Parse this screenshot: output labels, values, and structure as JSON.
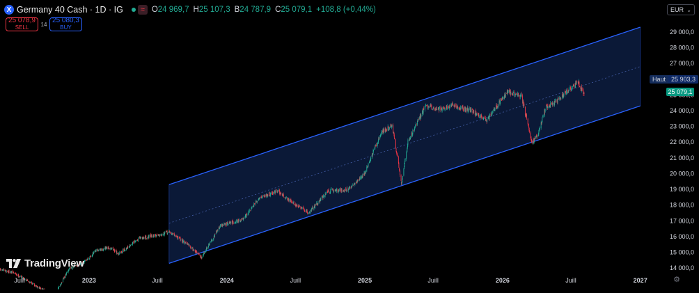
{
  "header": {
    "symbol_icon": "X",
    "symbol_icon_name": "exchange-icon",
    "title": "Germany 40 Cash · 1D · IG",
    "market_status_icon": "green-dot-icon",
    "wave_icon": "≈",
    "ohlc": {
      "open_label": "O",
      "open": "24 969,7",
      "high_label": "H",
      "high": "25 107,3",
      "low_label": "B",
      "low": "24 787,9",
      "close_label": "C",
      "close": "25 079,1",
      "change": "+108,8 (+0,44%)"
    }
  },
  "trade": {
    "sell_price": "25 078,9",
    "sell_label": "SELL",
    "spread": "14",
    "buy_price": "25 080,3",
    "buy_label": "BUY"
  },
  "currency": {
    "value": "EUR",
    "icon": "chevron-down-icon"
  },
  "price_tags": {
    "haut_label": "Haut",
    "haut_price": "25 903,3",
    "last_price": "25 079,1"
  },
  "logo": {
    "text": "TradingView",
    "icon": "tradingview-logo-icon"
  },
  "settings_icon": "gear-icon",
  "colors": {
    "background": "#000000",
    "up": "#22ab94",
    "down": "#f23645",
    "channel_line": "#2962ff",
    "channel_fill": "#0c1a3a",
    "last_price": "#089981"
  },
  "chart_data": {
    "type": "candlestick",
    "x_axis_labels": [
      {
        "label": "Juill",
        "date": "2022-07-01"
      },
      {
        "label": "2023",
        "date": "2023-01-01"
      },
      {
        "label": "Juill",
        "date": "2023-07-01"
      },
      {
        "label": "2024",
        "date": "2024-01-01"
      },
      {
        "label": "Juill",
        "date": "2024-07-01"
      },
      {
        "label": "2025",
        "date": "2025-01-01"
      },
      {
        "label": "Juill",
        "date": "2025-07-01"
      },
      {
        "label": "2026",
        "date": "2026-01-01"
      },
      {
        "label": "Juill",
        "date": "2026-07-01"
      },
      {
        "label": "2027",
        "date": "2027-01-01"
      }
    ],
    "y_ticks": [
      {
        "v": 14000,
        "label": "14 000,0"
      },
      {
        "v": 15000,
        "label": "15 000,0"
      },
      {
        "v": 16000,
        "label": "16 000,0"
      },
      {
        "v": 17000,
        "label": "17 000,0"
      },
      {
        "v": 18000,
        "label": "18 000,0"
      },
      {
        "v": 19000,
        "label": "19 000,0"
      },
      {
        "v": 20000,
        "label": "20 000,0"
      },
      {
        "v": 21000,
        "label": "21 000,0"
      },
      {
        "v": 22000,
        "label": "22 000,0"
      },
      {
        "v": 23000,
        "label": "23 000,0"
      },
      {
        "v": 24000,
        "label": "24 000,0"
      },
      {
        "v": 25000,
        "label": "25 000,0"
      },
      {
        "v": 26000,
        "label": "26 000,0"
      },
      {
        "v": 27000,
        "label": "27 000,0"
      },
      {
        "v": 28000,
        "label": "28 000,0"
      },
      {
        "v": 29000,
        "label": "29 000,0"
      }
    ],
    "ylim": [
      13700,
      29700
    ],
    "xlim": [
      "2022-05-10",
      "2027-01-20"
    ],
    "grid": false,
    "close_path": [
      {
        "date": "2022-05-10",
        "value": 13900
      },
      {
        "date": "2022-06-15",
        "value": 13700
      },
      {
        "date": "2022-07-15",
        "value": 13300
      },
      {
        "date": "2022-09-30",
        "value": 12200
      },
      {
        "date": "2022-11-10",
        "value": 14000
      },
      {
        "date": "2022-12-15",
        "value": 14300
      },
      {
        "date": "2023-01-20",
        "value": 15100
      },
      {
        "date": "2023-03-01",
        "value": 15300
      },
      {
        "date": "2023-03-20",
        "value": 14900
      },
      {
        "date": "2023-05-15",
        "value": 15900
      },
      {
        "date": "2023-07-01",
        "value": 16100
      },
      {
        "date": "2023-08-01",
        "value": 16300
      },
      {
        "date": "2023-09-15",
        "value": 15600
      },
      {
        "date": "2023-10-26",
        "value": 14700
      },
      {
        "date": "2023-12-15",
        "value": 16700
      },
      {
        "date": "2024-02-15",
        "value": 17100
      },
      {
        "date": "2024-03-28",
        "value": 18500
      },
      {
        "date": "2024-05-15",
        "value": 18900
      },
      {
        "date": "2024-06-20",
        "value": 18200
      },
      {
        "date": "2024-08-05",
        "value": 17500
      },
      {
        "date": "2024-09-25",
        "value": 18900
      },
      {
        "date": "2024-11-20",
        "value": 19000
      },
      {
        "date": "2024-12-31",
        "value": 20000
      },
      {
        "date": "2025-02-15",
        "value": 22700
      },
      {
        "date": "2025-03-15",
        "value": 23000
      },
      {
        "date": "2025-04-08",
        "value": 19400
      },
      {
        "date": "2025-04-25",
        "value": 22000
      },
      {
        "date": "2025-06-10",
        "value": 24300
      },
      {
        "date": "2025-07-15",
        "value": 24100
      },
      {
        "date": "2025-08-20",
        "value": 24300
      },
      {
        "date": "2025-10-10",
        "value": 24000
      },
      {
        "date": "2025-11-20",
        "value": 23400
      },
      {
        "date": "2025-12-20",
        "value": 24400
      },
      {
        "date": "2026-01-15",
        "value": 25200
      },
      {
        "date": "2026-02-20",
        "value": 24900
      },
      {
        "date": "2026-03-20",
        "value": 22000
      },
      {
        "date": "2026-04-05",
        "value": 22500
      },
      {
        "date": "2026-04-25",
        "value": 24200
      },
      {
        "date": "2026-05-20",
        "value": 24500
      },
      {
        "date": "2026-06-20",
        "value": 25200
      },
      {
        "date": "2026-07-20",
        "value": 25800
      },
      {
        "date": "2026-08-05",
        "value": 25079
      }
    ],
    "channel": {
      "start_date": "2023-08-01",
      "end_date": "2027-01-01",
      "upper": [
        19300,
        29300
      ],
      "middle": [
        16850,
        26800
      ],
      "lower": [
        14300,
        24300
      ]
    }
  }
}
